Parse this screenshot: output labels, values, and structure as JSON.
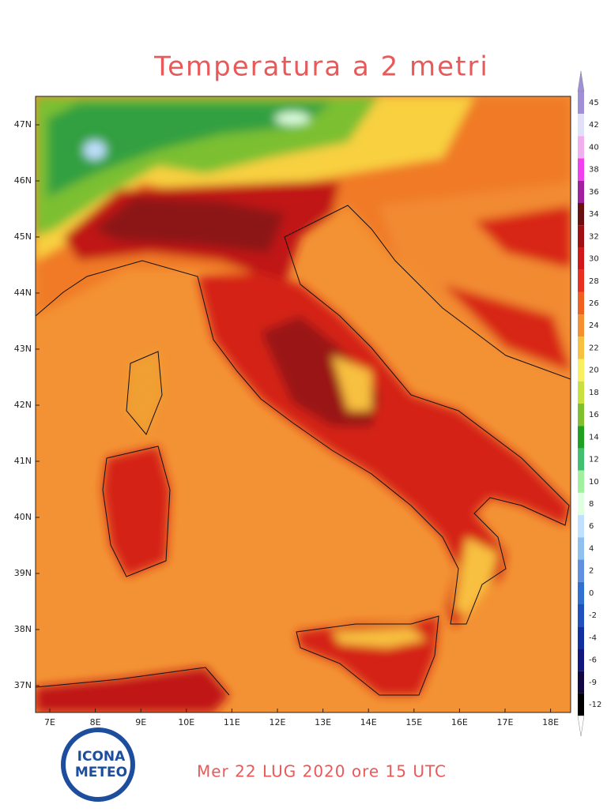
{
  "title": "Temperatura a 2 metri",
  "lat_labels": [
    "47N",
    "46N",
    "45N",
    "44N",
    "43N",
    "42N",
    "41N",
    "40N",
    "39N",
    "38N",
    "37N"
  ],
  "lon_labels": [
    "7E",
    "8E",
    "9E",
    "10E",
    "11E",
    "12E",
    "13E",
    "14E",
    "15E",
    "16E",
    "17E",
    "18E"
  ],
  "legend": {
    "labels": [
      45,
      42,
      40,
      38,
      36,
      34,
      32,
      30,
      28,
      26,
      24,
      22,
      20,
      18,
      16,
      14,
      12,
      10,
      8,
      6,
      4,
      2,
      0,
      -2,
      -4,
      -6,
      -9,
      -12
    ],
    "colors": [
      "#9f8fd6",
      "#e0e0f8",
      "#f0b0f0",
      "#f040f0",
      "#a020a0",
      "#6b1010",
      "#a01010",
      "#d01818",
      "#e83020",
      "#f06020",
      "#f59030",
      "#f8c040",
      "#f8f060",
      "#c8e040",
      "#80c030",
      "#20a020",
      "#40c070",
      "#a0f0a0",
      "#e0ffe0",
      "#c0e0ff",
      "#90c0f0",
      "#6090e0",
      "#3070d0",
      "#2050c0",
      "#1030a0",
      "#101880",
      "#100840",
      "#000000"
    ]
  },
  "footer": "Mer 22 LUG 2020 ore 15 UTC",
  "logo": {
    "line1": "ICONA",
    "line2": "METEO"
  }
}
